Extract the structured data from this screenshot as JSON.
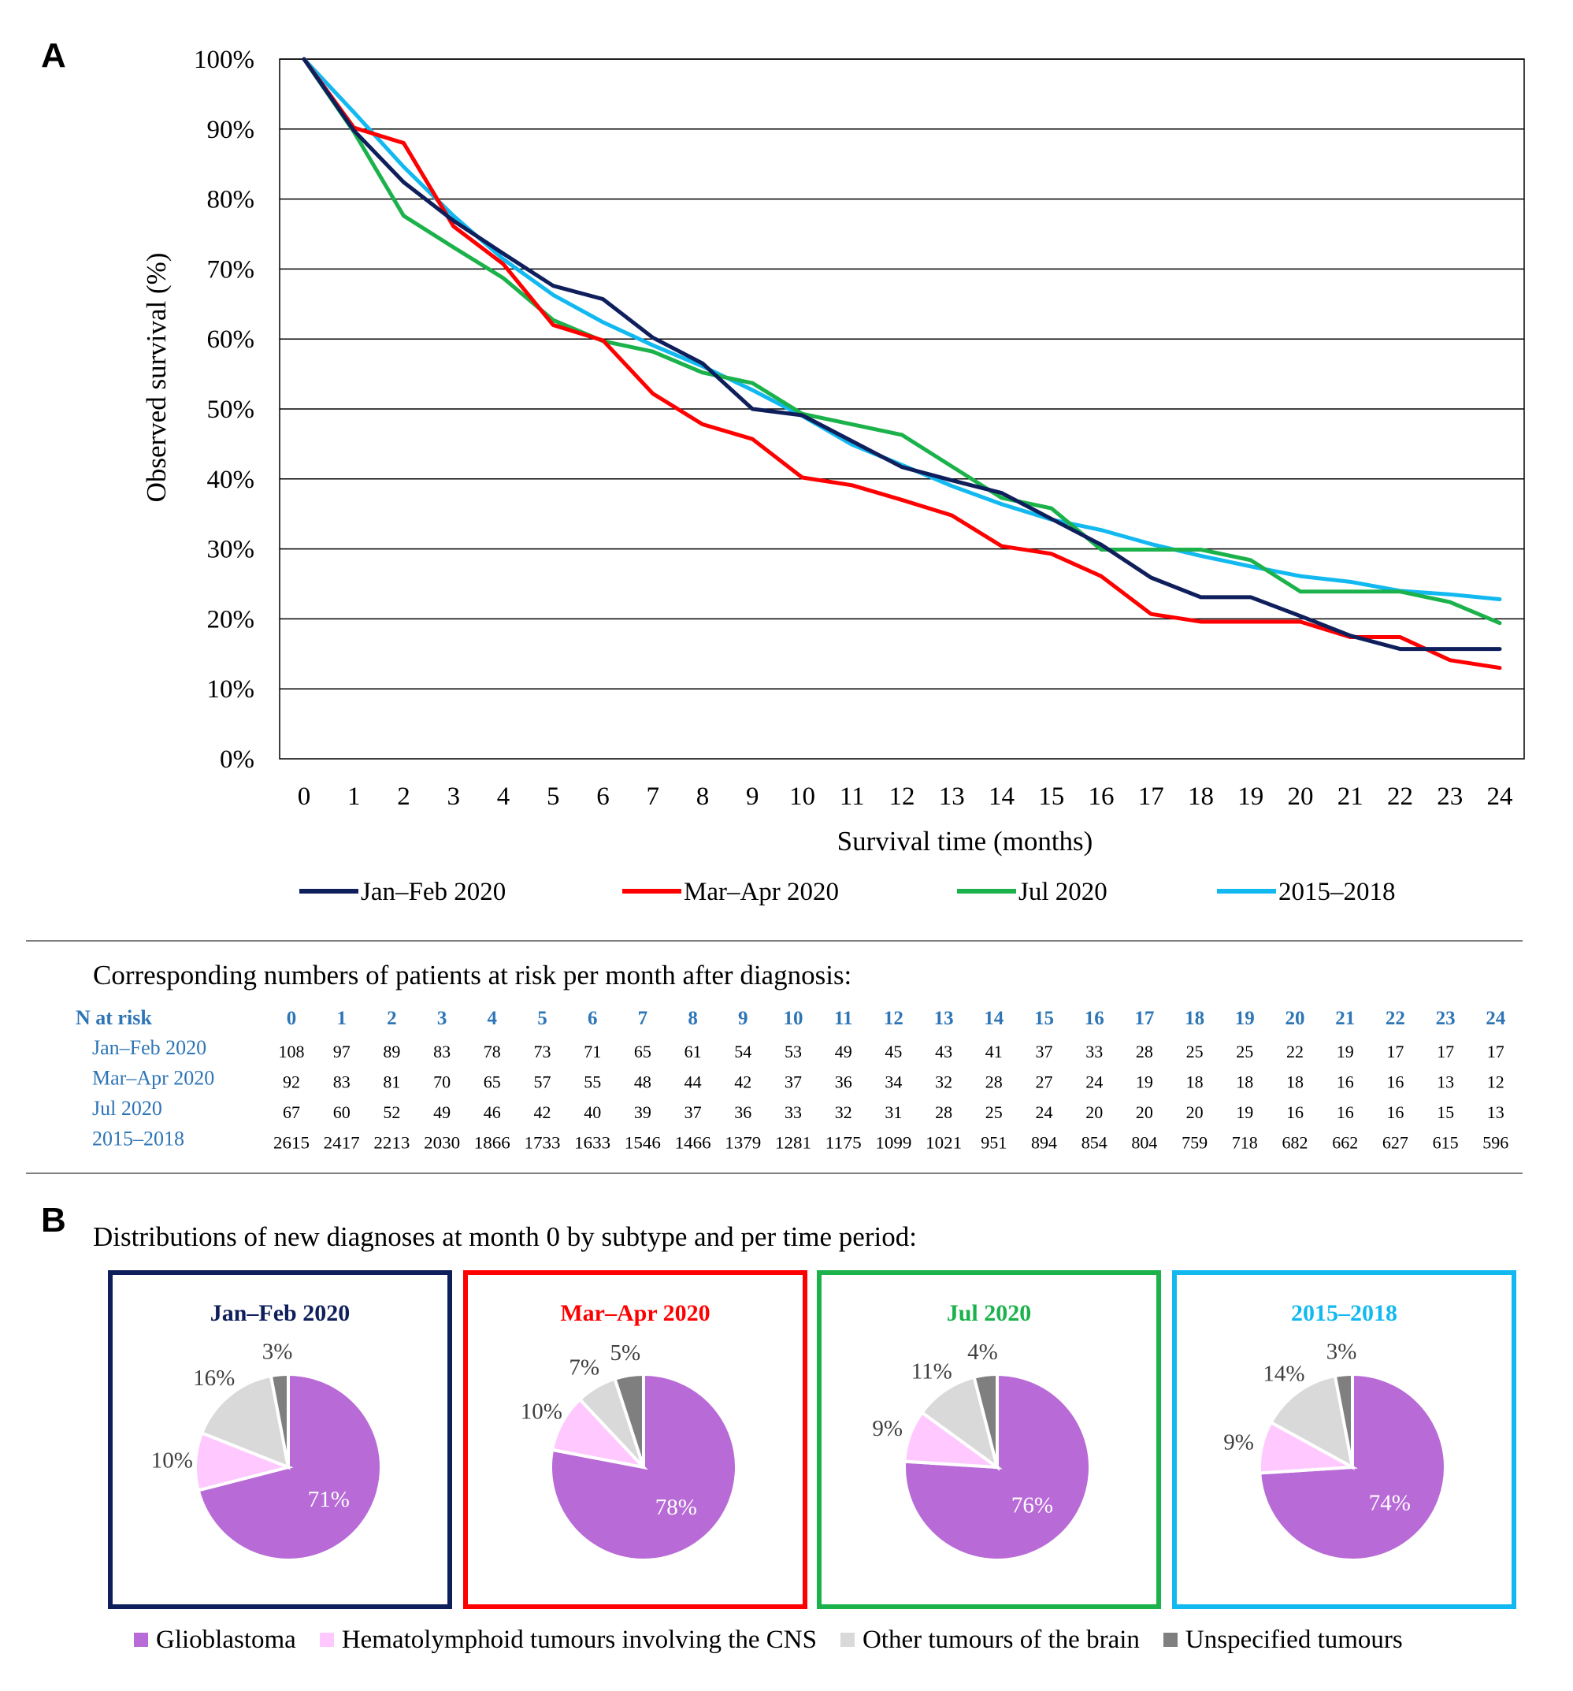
{
  "panel_a_label": "A",
  "panel_b_label": "B",
  "colors": {
    "jan_feb": "#0f1f5c",
    "mar_apr": "#ff0000",
    "jul": "#1bb24b",
    "ref": "#12b9f0",
    "risk_blue": "#2e75b6",
    "glioblastoma": "#b86bd6",
    "hematolymphoid": "#ffc8ff",
    "other": "#d9d9d9",
    "unspecified": "#7f7f7f"
  },
  "chart_data": [
    {
      "type": "line",
      "xlabel": "Survival time (months)",
      "ylabel": "Observed survival (%)",
      "ylim": [
        0,
        100
      ],
      "yticks": [
        "0%",
        "10%",
        "20%",
        "30%",
        "40%",
        "50%",
        "60%",
        "70%",
        "80%",
        "90%",
        "100%"
      ],
      "x": [
        0,
        1,
        2,
        3,
        4,
        5,
        6,
        7,
        8,
        9,
        10,
        11,
        12,
        13,
        14,
        15,
        16,
        17,
        18,
        19,
        20,
        21,
        22,
        23,
        24
      ],
      "xtick_labels": [
        "0",
        "1",
        "2",
        "3",
        "4",
        "5",
        "6",
        "7",
        "8",
        "9",
        "10",
        "11",
        "12",
        "13",
        "14",
        "15",
        "16",
        "17",
        "18",
        "19",
        "20",
        "21",
        "22",
        "23",
        "24"
      ],
      "grid": true,
      "legend_position": "bottom",
      "series": [
        {
          "name": "Jan–Feb 2020",
          "color_key": "jan_feb",
          "values": [
            100,
            89.8,
            82.4,
            76.9,
            72.2,
            67.6,
            65.7,
            60.2,
            56.5,
            50.0,
            49.1,
            45.4,
            41.7,
            39.8,
            38.0,
            34.3,
            30.6,
            25.9,
            23.1,
            23.1,
            20.4,
            17.6,
            15.7,
            15.7,
            15.7
          ]
        },
        {
          "name": "Mar–Apr 2020",
          "color_key": "mar_apr",
          "values": [
            100,
            90.2,
            88.0,
            76.1,
            70.7,
            62.0,
            59.8,
            52.2,
            47.8,
            45.7,
            40.2,
            39.1,
            37.0,
            34.8,
            30.4,
            29.3,
            26.1,
            20.7,
            19.6,
            19.6,
            19.6,
            17.4,
            17.4,
            14.1,
            13.0
          ]
        },
        {
          "name": "Jul 2020",
          "color_key": "jul",
          "values": [
            100,
            89.6,
            77.6,
            73.1,
            68.7,
            62.7,
            59.7,
            58.2,
            55.2,
            53.7,
            49.3,
            47.8,
            46.3,
            41.8,
            37.3,
            35.8,
            29.9,
            29.9,
            29.9,
            28.4,
            23.9,
            23.9,
            23.9,
            22.4,
            19.4
          ]
        },
        {
          "name": "2015–2018",
          "color_key": "ref",
          "values": [
            100,
            92.4,
            84.6,
            77.6,
            71.4,
            66.3,
            62.4,
            59.1,
            56.1,
            52.7,
            49.0,
            44.9,
            42.0,
            39.0,
            36.4,
            34.2,
            32.7,
            30.7,
            29.0,
            27.5,
            26.1,
            25.3,
            24.0,
            23.5,
            22.8
          ]
        }
      ]
    },
    {
      "type": "table",
      "caption": "Corresponding numbers of patients at risk per month after diagnosis:",
      "header_label": "N at risk",
      "columns": [
        "0",
        "1",
        "2",
        "3",
        "4",
        "5",
        "6",
        "7",
        "8",
        "9",
        "10",
        "11",
        "12",
        "13",
        "14",
        "15",
        "16",
        "17",
        "18",
        "19",
        "20",
        "21",
        "22",
        "23",
        "24"
      ],
      "rows": [
        {
          "label": "Jan–Feb 2020",
          "values": [
            108,
            97,
            89,
            83,
            78,
            73,
            71,
            65,
            61,
            54,
            53,
            49,
            45,
            43,
            41,
            37,
            33,
            28,
            25,
            25,
            22,
            19,
            17,
            17,
            17
          ]
        },
        {
          "label": "Mar–Apr 2020",
          "values": [
            92,
            83,
            81,
            70,
            65,
            57,
            55,
            48,
            44,
            42,
            37,
            36,
            34,
            32,
            28,
            27,
            24,
            19,
            18,
            18,
            18,
            16,
            16,
            13,
            12
          ]
        },
        {
          "label": "Jul 2020",
          "values": [
            67,
            60,
            52,
            49,
            46,
            42,
            40,
            39,
            37,
            36,
            33,
            32,
            31,
            28,
            25,
            24,
            20,
            20,
            20,
            19,
            16,
            16,
            16,
            15,
            13
          ]
        },
        {
          "label": "2015–2018",
          "values": [
            2615,
            2417,
            2213,
            2030,
            1866,
            1733,
            1633,
            1546,
            1466,
            1379,
            1281,
            1175,
            1099,
            1021,
            951,
            894,
            854,
            804,
            759,
            718,
            682,
            662,
            627,
            615,
            596
          ]
        }
      ]
    },
    {
      "type": "pie",
      "caption": "Distributions of new diagnoses at month 0 by subtype and per time period:",
      "categories": [
        "Glioblastoma",
        "Hematolymphoid tumours involving the CNS",
        "Other tumours of the brain",
        "Unspecified tumours"
      ],
      "category_color_keys": [
        "glioblastoma",
        "hematolymphoid",
        "other",
        "unspecified"
      ],
      "pies": [
        {
          "title": "Jan–Feb 2020",
          "color_key": "jan_feb",
          "values": [
            71,
            10,
            16,
            3
          ],
          "labels": [
            "71%",
            "10%",
            "16%",
            "3%"
          ]
        },
        {
          "title": "Mar–Apr 2020",
          "color_key": "mar_apr",
          "values": [
            78,
            10,
            7,
            5
          ],
          "labels": [
            "78%",
            "10%",
            "7%",
            "5%"
          ]
        },
        {
          "title": "Jul 2020",
          "color_key": "jul",
          "values": [
            76,
            9,
            11,
            4
          ],
          "labels": [
            "76%",
            "9%",
            "11%",
            "4%"
          ]
        },
        {
          "title": "2015–2018",
          "color_key": "ref",
          "values": [
            74,
            9,
            14,
            3
          ],
          "labels": [
            "74%",
            "9%",
            "14%",
            "3%"
          ]
        }
      ]
    }
  ]
}
